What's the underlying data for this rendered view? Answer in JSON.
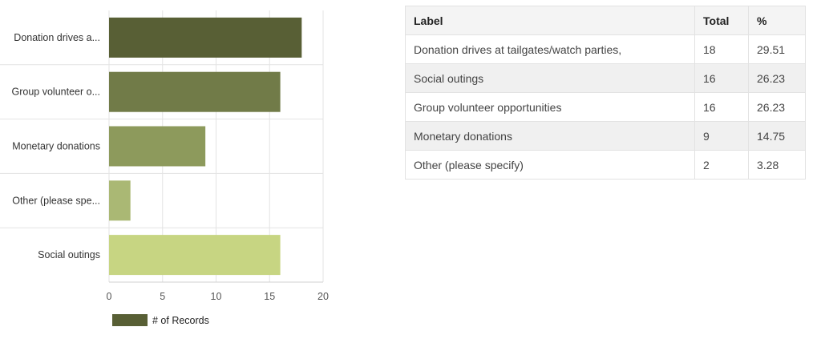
{
  "chart_data": {
    "type": "bar",
    "orientation": "horizontal",
    "categories": [
      "Donation drives a...",
      "Group volunteer o...",
      "Monetary donations",
      "Other (please spe...",
      "Social outings"
    ],
    "series": [
      {
        "name": "# of Records",
        "values": [
          18,
          16,
          9,
          2,
          16
        ]
      }
    ],
    "bar_colors": [
      "#585f35",
      "#717b48",
      "#8d9a5c",
      "#aab874",
      "#c7d582"
    ],
    "xlim": [
      0,
      20
    ],
    "xticks": [
      0,
      5,
      10,
      15,
      20
    ],
    "grid": true,
    "legend_position": "bottom-left"
  },
  "table": {
    "headers": {
      "label": "Label",
      "total": "Total",
      "percent": "%"
    },
    "rows": [
      {
        "label": "Donation drives at tailgates/watch parties,",
        "total": "18",
        "percent": "29.51"
      },
      {
        "label": "Social outings",
        "total": "16",
        "percent": "26.23"
      },
      {
        "label": "Group volunteer opportunities",
        "total": "16",
        "percent": "26.23"
      },
      {
        "label": "Monetary donations",
        "total": "9",
        "percent": "14.75"
      },
      {
        "label": "Other (please specify)",
        "total": "2",
        "percent": "3.28"
      }
    ]
  }
}
